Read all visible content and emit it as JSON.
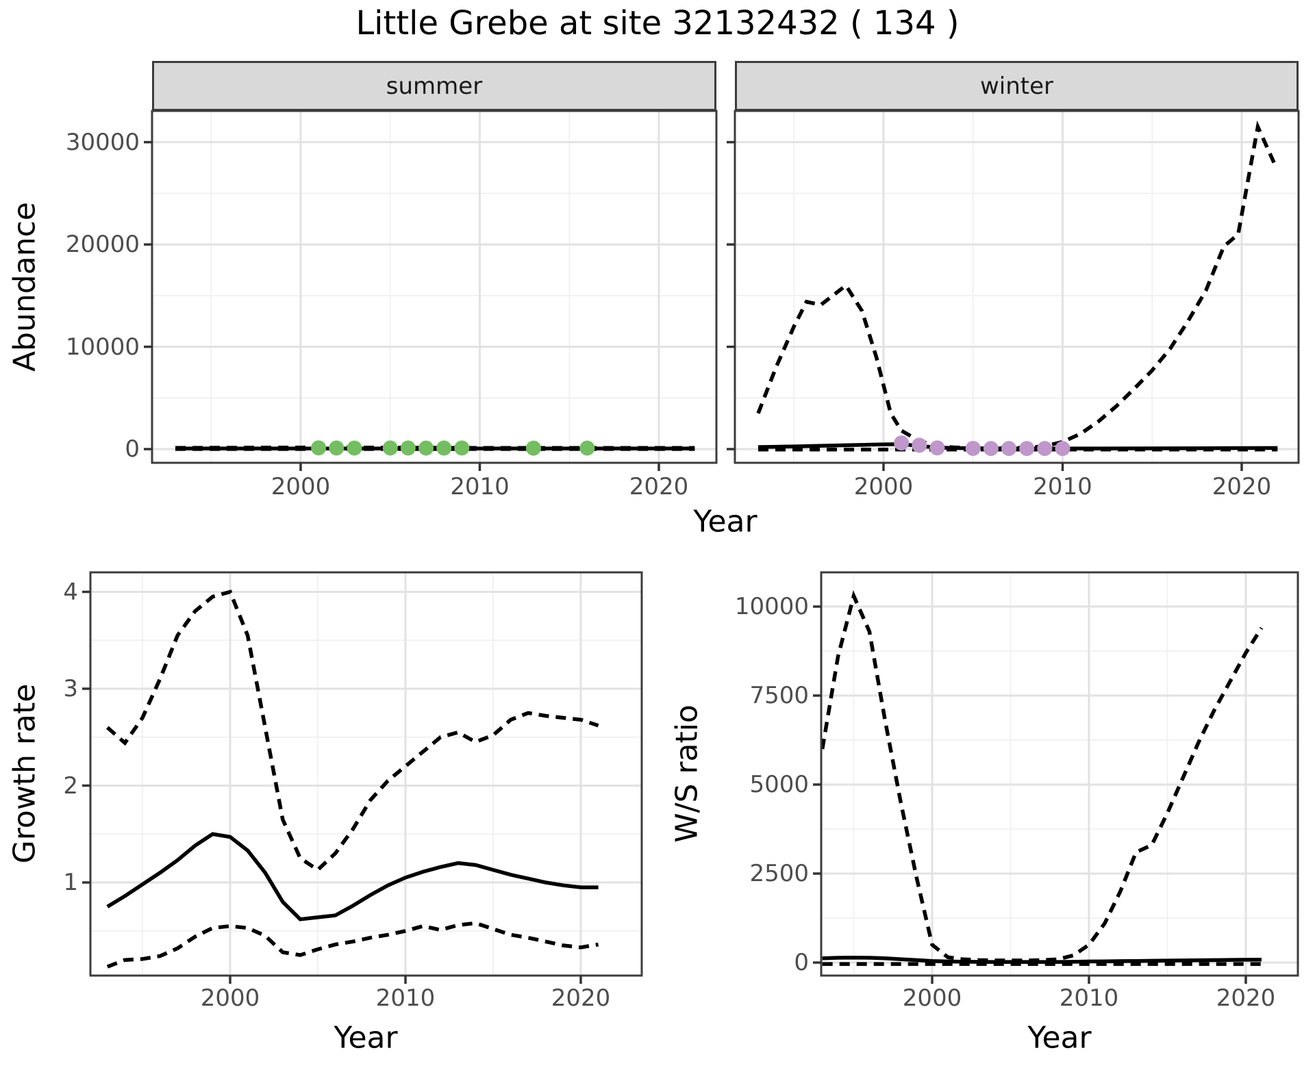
{
  "title": "Little Grebe at site 32132432 ( 134 )",
  "colors": {
    "summer_points": "#74be61",
    "winter_points": "#bf97ca",
    "line": "#000000",
    "strip_bg": "#d9d9d9",
    "panel_border": "#3c3c3c",
    "grid_major": "#e2e2e2",
    "grid_minor": "#f0f0f0",
    "tick_text": "#4d4d4d"
  },
  "top_row": {
    "ylabel": "Abundance",
    "xlabel": "Year",
    "facets": [
      {
        "label": "summer"
      },
      {
        "label": "winter"
      }
    ]
  },
  "bottom_left": {
    "ylabel": "Growth rate",
    "xlabel": "Year"
  },
  "bottom_right": {
    "ylabel": "W/S ratio",
    "xlabel": "Year"
  },
  "chart_data": [
    {
      "type": "line",
      "name": "abundance_by_season",
      "title": "Little Grebe at site 32132432 ( 134 )",
      "xlabel": "Year",
      "ylabel": "Abundance",
      "xlim": [
        1991.7,
        2023.2
      ],
      "ylim": [
        -1340,
        33050
      ],
      "grid": true,
      "x_ticks": {
        "major": [
          2000,
          2010,
          2020
        ],
        "minor": [
          1995,
          2005,
          2015
        ],
        "labels": [
          "2000",
          "2010",
          "2020"
        ]
      },
      "y_ticks": {
        "major": [
          0,
          10000,
          20000,
          30000
        ],
        "minor": [
          5000,
          15000,
          25000
        ],
        "labels": [
          "0",
          "10000",
          "20000",
          "30000"
        ]
      },
      "facets": [
        {
          "label": "summer",
          "point_color": "#74be61",
          "fit": [
            [
              1993,
              60
            ],
            [
              2022,
              60
            ]
          ],
          "upper": [
            [
              1993,
              120
            ],
            [
              2001,
              160
            ],
            [
              2010,
              120
            ],
            [
              2022,
              120
            ]
          ],
          "lower": [
            [
              1993,
              10
            ],
            [
              2022,
              10
            ]
          ],
          "observations": [
            [
              2001,
              120
            ],
            [
              2002,
              110
            ],
            [
              2003,
              100
            ],
            [
              2005,
              110
            ],
            [
              2006,
              105
            ],
            [
              2007,
              100
            ],
            [
              2008,
              105
            ],
            [
              2009,
              110
            ],
            [
              2013,
              95
            ],
            [
              2016,
              100
            ]
          ]
        },
        {
          "label": "winter",
          "point_color": "#bf97ca",
          "fit": [
            [
              1993,
              200
            ],
            [
              1994,
              230
            ],
            [
              1995,
              260
            ],
            [
              1996,
              300
            ],
            [
              1997,
              340
            ],
            [
              1998,
              380
            ],
            [
              1999,
              420
            ],
            [
              2000,
              460
            ],
            [
              2001,
              490
            ],
            [
              2002,
              300
            ],
            [
              2003,
              160
            ],
            [
              2004,
              100
            ],
            [
              2005,
              80
            ],
            [
              2006,
              70
            ],
            [
              2007,
              65
            ],
            [
              2008,
              60
            ],
            [
              2009,
              60
            ],
            [
              2010,
              60
            ],
            [
              2012,
              60
            ],
            [
              2014,
              65
            ],
            [
              2016,
              75
            ],
            [
              2018,
              85
            ],
            [
              2020,
              100
            ],
            [
              2022,
              110
            ]
          ],
          "upper": [
            [
              1993,
              3500
            ],
            [
              1994,
              8000
            ],
            [
              1995,
              12000
            ],
            [
              1995.7,
              14400
            ],
            [
              1996.5,
              14100
            ],
            [
              1997.9,
              16000
            ],
            [
              1998.8,
              13500
            ],
            [
              1999.6,
              9000
            ],
            [
              2000.4,
              3500
            ],
            [
              2001,
              1800
            ],
            [
              2002,
              800
            ],
            [
              2003,
              300
            ],
            [
              2004,
              160
            ],
            [
              2005,
              130
            ],
            [
              2006,
              120
            ],
            [
              2007,
              120
            ],
            [
              2008,
              140
            ],
            [
              2009,
              280
            ],
            [
              2010,
              700
            ],
            [
              2011,
              1500
            ],
            [
              2012,
              2700
            ],
            [
              2013,
              4200
            ],
            [
              2014,
              5900
            ],
            [
              2015,
              7700
            ],
            [
              2016,
              9800
            ],
            [
              2017,
              12500
            ],
            [
              2018,
              15500
            ],
            [
              2019,
              19800
            ],
            [
              2019.8,
              21000
            ],
            [
              2020.9,
              31500
            ],
            [
              2021.8,
              28000
            ]
          ],
          "lower": [
            [
              1993,
              -40
            ],
            [
              2022,
              -40
            ]
          ],
          "observations": [
            [
              2001,
              600
            ],
            [
              2002,
              380
            ],
            [
              2003,
              120
            ],
            [
              2005,
              70
            ],
            [
              2006,
              60
            ],
            [
              2007,
              60
            ],
            [
              2008,
              60
            ],
            [
              2009,
              60
            ],
            [
              2010,
              60
            ]
          ]
        }
      ]
    },
    {
      "type": "line",
      "name": "growth_rate",
      "xlabel": "Year",
      "ylabel": "Growth rate",
      "xlim": [
        1992.0,
        2023.5
      ],
      "ylim": [
        0.04,
        4.21
      ],
      "grid": true,
      "x_ticks": {
        "major": [
          2000,
          2010,
          2020
        ],
        "minor": [
          1995,
          2005,
          2015
        ],
        "labels": [
          "2000",
          "2010",
          "2020"
        ]
      },
      "y_ticks": {
        "major": [
          1,
          2,
          3,
          4
        ],
        "minor": [
          0.5,
          1.5,
          2.5,
          3.5
        ],
        "labels": [
          "1",
          "2",
          "3",
          "4"
        ]
      },
      "series": {
        "fit": [
          [
            1993,
            0.75
          ],
          [
            1994,
            0.86
          ],
          [
            1995,
            0.98
          ],
          [
            1996,
            1.1
          ],
          [
            1997,
            1.23
          ],
          [
            1998,
            1.38
          ],
          [
            1999,
            1.5
          ],
          [
            2000,
            1.47
          ],
          [
            2001,
            1.33
          ],
          [
            2002,
            1.1
          ],
          [
            2003,
            0.8
          ],
          [
            2004,
            0.62
          ],
          [
            2005,
            0.64
          ],
          [
            2006,
            0.66
          ],
          [
            2007,
            0.76
          ],
          [
            2008,
            0.87
          ],
          [
            2009,
            0.97
          ],
          [
            2010,
            1.05
          ],
          [
            2011,
            1.11
          ],
          [
            2012,
            1.16
          ],
          [
            2013,
            1.2
          ],
          [
            2014,
            1.18
          ],
          [
            2015,
            1.13
          ],
          [
            2016,
            1.08
          ],
          [
            2017,
            1.04
          ],
          [
            2018,
            1.0
          ],
          [
            2019,
            0.97
          ],
          [
            2020,
            0.95
          ],
          [
            2021,
            0.95
          ]
        ],
        "upper": [
          [
            1993,
            2.6
          ],
          [
            1994,
            2.44
          ],
          [
            1995,
            2.7
          ],
          [
            1996,
            3.1
          ],
          [
            1997,
            3.55
          ],
          [
            1998,
            3.8
          ],
          [
            1999,
            3.95
          ],
          [
            2000,
            4.0
          ],
          [
            2001,
            3.55
          ],
          [
            2002,
            2.6
          ],
          [
            2003,
            1.65
          ],
          [
            2004,
            1.25
          ],
          [
            2005,
            1.13
          ],
          [
            2006,
            1.3
          ],
          [
            2007,
            1.55
          ],
          [
            2008,
            1.85
          ],
          [
            2009,
            2.05
          ],
          [
            2010,
            2.2
          ],
          [
            2011,
            2.35
          ],
          [
            2012,
            2.5
          ],
          [
            2013,
            2.55
          ],
          [
            2014,
            2.45
          ],
          [
            2015,
            2.52
          ],
          [
            2016,
            2.68
          ],
          [
            2017,
            2.75
          ],
          [
            2018,
            2.72
          ],
          [
            2019,
            2.7
          ],
          [
            2020,
            2.68
          ],
          [
            2021,
            2.62
          ]
        ],
        "lower": [
          [
            1993,
            0.13
          ],
          [
            1994,
            0.2
          ],
          [
            1995,
            0.21
          ],
          [
            1996,
            0.24
          ],
          [
            1997,
            0.32
          ],
          [
            1998,
            0.44
          ],
          [
            1999,
            0.53
          ],
          [
            2000,
            0.55
          ],
          [
            2001,
            0.53
          ],
          [
            2002,
            0.45
          ],
          [
            2003,
            0.28
          ],
          [
            2004,
            0.25
          ],
          [
            2005,
            0.31
          ],
          [
            2006,
            0.36
          ],
          [
            2007,
            0.39
          ],
          [
            2008,
            0.43
          ],
          [
            2009,
            0.46
          ],
          [
            2010,
            0.5
          ],
          [
            2011,
            0.55
          ],
          [
            2012,
            0.51
          ],
          [
            2013,
            0.56
          ],
          [
            2014,
            0.58
          ],
          [
            2015,
            0.52
          ],
          [
            2016,
            0.46
          ],
          [
            2017,
            0.43
          ],
          [
            2018,
            0.39
          ],
          [
            2019,
            0.35
          ],
          [
            2020,
            0.33
          ],
          [
            2021,
            0.36
          ]
        ]
      }
    },
    {
      "type": "line",
      "name": "winter_summer_ratio",
      "xlabel": "Year",
      "ylabel": "W/S ratio",
      "xlim": [
        1992.9,
        2023.3
      ],
      "ylim": [
        -365,
        10940
      ],
      "grid": true,
      "x_ticks": {
        "major": [
          2000,
          2010,
          2020
        ],
        "minor": [
          1995,
          2005,
          2015
        ],
        "labels": [
          "2000",
          "2010",
          "2020"
        ]
      },
      "y_ticks": {
        "major": [
          0,
          2500,
          5000,
          7500,
          10000
        ],
        "minor": [
          1250,
          3750,
          6250,
          8750
        ],
        "labels": [
          "0",
          "2500",
          "5000",
          "7500",
          "10000"
        ]
      },
      "series": {
        "fit": [
          [
            1993,
            120
          ],
          [
            1994,
            135
          ],
          [
            1995,
            140
          ],
          [
            1996,
            135
          ],
          [
            1997,
            120
          ],
          [
            1998,
            95
          ],
          [
            1999,
            70
          ],
          [
            2000,
            45
          ],
          [
            2001,
            30
          ],
          [
            2002,
            25
          ],
          [
            2003,
            20
          ],
          [
            2004,
            18
          ],
          [
            2005,
            18
          ],
          [
            2006,
            18
          ],
          [
            2007,
            18
          ],
          [
            2008,
            18
          ],
          [
            2009,
            22
          ],
          [
            2010,
            30
          ],
          [
            2011,
            35
          ],
          [
            2012,
            40
          ],
          [
            2013,
            45
          ],
          [
            2014,
            50
          ],
          [
            2015,
            55
          ],
          [
            2016,
            60
          ],
          [
            2017,
            65
          ],
          [
            2018,
            70
          ],
          [
            2019,
            75
          ],
          [
            2020,
            78
          ],
          [
            2021,
            80
          ]
        ],
        "upper": [
          [
            1993,
            6000
          ],
          [
            1994,
            8600
          ],
          [
            1995,
            10300
          ],
          [
            1996,
            9300
          ],
          [
            1997,
            6800
          ],
          [
            1998,
            4500
          ],
          [
            1999,
            2400
          ],
          [
            2000,
            500
          ],
          [
            2001,
            150
          ],
          [
            2002,
            90
          ],
          [
            2003,
            70
          ],
          [
            2004,
            60
          ],
          [
            2005,
            60
          ],
          [
            2006,
            60
          ],
          [
            2007,
            70
          ],
          [
            2008,
            90
          ],
          [
            2009,
            200
          ],
          [
            2010,
            500
          ],
          [
            2011,
            1100
          ],
          [
            2012,
            2000
          ],
          [
            2013,
            3100
          ],
          [
            2014,
            3300
          ],
          [
            2015,
            4200
          ],
          [
            2016,
            5200
          ],
          [
            2017,
            6200
          ],
          [
            2018,
            7100
          ],
          [
            2019,
            7900
          ],
          [
            2020,
            8700
          ],
          [
            2021,
            9400
          ]
        ],
        "lower": [
          [
            1993,
            -40
          ],
          [
            2021,
            -40
          ]
        ]
      }
    }
  ]
}
